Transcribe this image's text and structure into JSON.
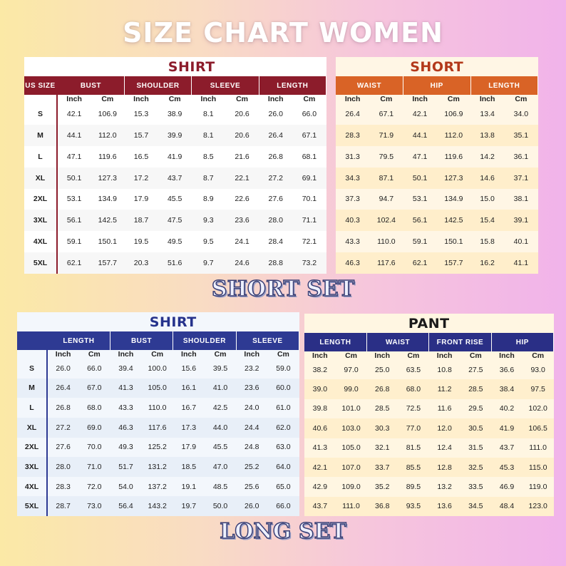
{
  "title": "SIZE CHART WOMEN",
  "labels": {
    "short_set": "SHORT SET",
    "long_set": "LONG SET"
  },
  "colors": {
    "short_shirt_accent": "#8c1c2b",
    "short_accent": "#d96326",
    "long_shirt_accent": "#2e3a93",
    "pant_accent": "#2a2f86"
  },
  "tables": {
    "short_shirt": {
      "title": "SHIRT",
      "size_header": "US SIZE",
      "groups": [
        "BUST",
        "SHOULDER",
        "SLEEVE",
        "LENGTH"
      ],
      "units": [
        "Inch",
        "Cm",
        "Inch",
        "Cm",
        "Inch",
        "Cm",
        "Inch",
        "Cm"
      ],
      "rows": [
        {
          "size": "S",
          "values": [
            "42.1",
            "106.9",
            "15.3",
            "38.9",
            "8.1",
            "20.6",
            "26.0",
            "66.0"
          ]
        },
        {
          "size": "M",
          "values": [
            "44.1",
            "112.0",
            "15.7",
            "39.9",
            "8.1",
            "20.6",
            "26.4",
            "67.1"
          ]
        },
        {
          "size": "L",
          "values": [
            "47.1",
            "119.6",
            "16.5",
            "41.9",
            "8.5",
            "21.6",
            "26.8",
            "68.1"
          ]
        },
        {
          "size": "XL",
          "values": [
            "50.1",
            "127.3",
            "17.2",
            "43.7",
            "8.7",
            "22.1",
            "27.2",
            "69.1"
          ]
        },
        {
          "size": "2XL",
          "values": [
            "53.1",
            "134.9",
            "17.9",
            "45.5",
            "8.9",
            "22.6",
            "27.6",
            "70.1"
          ]
        },
        {
          "size": "3XL",
          "values": [
            "56.1",
            "142.5",
            "18.7",
            "47.5",
            "9.3",
            "23.6",
            "28.0",
            "71.1"
          ]
        },
        {
          "size": "4XL",
          "values": [
            "59.1",
            "150.1",
            "19.5",
            "49.5",
            "9.5",
            "24.1",
            "28.4",
            "72.1"
          ]
        },
        {
          "size": "5XL",
          "values": [
            "62.1",
            "157.7",
            "20.3",
            "51.6",
            "9.7",
            "24.6",
            "28.8",
            "73.2"
          ]
        }
      ]
    },
    "short": {
      "title": "SHORT",
      "groups": [
        "WAIST",
        "HIP",
        "LENGTH"
      ],
      "units": [
        "Inch",
        "Cm",
        "Inch",
        "Cm",
        "Inch",
        "Cm"
      ],
      "rows": [
        {
          "values": [
            "26.4",
            "67.1",
            "42.1",
            "106.9",
            "13.4",
            "34.0"
          ]
        },
        {
          "values": [
            "28.3",
            "71.9",
            "44.1",
            "112.0",
            "13.8",
            "35.1"
          ]
        },
        {
          "values": [
            "31.3",
            "79.5",
            "47.1",
            "119.6",
            "14.2",
            "36.1"
          ]
        },
        {
          "values": [
            "34.3",
            "87.1",
            "50.1",
            "127.3",
            "14.6",
            "37.1"
          ]
        },
        {
          "values": [
            "37.3",
            "94.7",
            "53.1",
            "134.9",
            "15.0",
            "38.1"
          ]
        },
        {
          "values": [
            "40.3",
            "102.4",
            "56.1",
            "142.5",
            "15.4",
            "39.1"
          ]
        },
        {
          "values": [
            "43.3",
            "110.0",
            "59.1",
            "150.1",
            "15.8",
            "40.1"
          ]
        },
        {
          "values": [
            "46.3",
            "117.6",
            "62.1",
            "157.7",
            "16.2",
            "41.1"
          ]
        }
      ]
    },
    "long_shirt": {
      "title": "SHIRT",
      "size_header": "",
      "groups": [
        "LENGTH",
        "BUST",
        "SHOULDER",
        "SLEEVE"
      ],
      "units": [
        "Inch",
        "Cm",
        "Inch",
        "Cm",
        "Inch",
        "Cm",
        "Inch",
        "Cm"
      ],
      "rows": [
        {
          "size": "S",
          "values": [
            "26.0",
            "66.0",
            "39.4",
            "100.0",
            "15.6",
            "39.5",
            "23.2",
            "59.0"
          ]
        },
        {
          "size": "M",
          "values": [
            "26.4",
            "67.0",
            "41.3",
            "105.0",
            "16.1",
            "41.0",
            "23.6",
            "60.0"
          ]
        },
        {
          "size": "L",
          "values": [
            "26.8",
            "68.0",
            "43.3",
            "110.0",
            "16.7",
            "42.5",
            "24.0",
            "61.0"
          ]
        },
        {
          "size": "XL",
          "values": [
            "27.2",
            "69.0",
            "46.3",
            "117.6",
            "17.3",
            "44.0",
            "24.4",
            "62.0"
          ]
        },
        {
          "size": "2XL",
          "values": [
            "27.6",
            "70.0",
            "49.3",
            "125.2",
            "17.9",
            "45.5",
            "24.8",
            "63.0"
          ]
        },
        {
          "size": "3XL",
          "values": [
            "28.0",
            "71.0",
            "51.7",
            "131.2",
            "18.5",
            "47.0",
            "25.2",
            "64.0"
          ]
        },
        {
          "size": "4XL",
          "values": [
            "28.3",
            "72.0",
            "54.0",
            "137.2",
            "19.1",
            "48.5",
            "25.6",
            "65.0"
          ]
        },
        {
          "size": "5XL",
          "values": [
            "28.7",
            "73.0",
            "56.4",
            "143.2",
            "19.7",
            "50.0",
            "26.0",
            "66.0"
          ]
        }
      ]
    },
    "pant": {
      "title": "PANT",
      "groups": [
        "LENGTH",
        "WAIST",
        "FRONT RISE",
        "HIP"
      ],
      "units": [
        "Inch",
        "Cm",
        "Inch",
        "Cm",
        "Inch",
        "Cm",
        "Inch",
        "Cm"
      ],
      "rows": [
        {
          "values": [
            "38.2",
            "97.0",
            "25.0",
            "63.5",
            "10.8",
            "27.5",
            "36.6",
            "93.0"
          ]
        },
        {
          "values": [
            "39.0",
            "99.0",
            "26.8",
            "68.0",
            "11.2",
            "28.5",
            "38.4",
            "97.5"
          ]
        },
        {
          "values": [
            "39.8",
            "101.0",
            "28.5",
            "72.5",
            "11.6",
            "29.5",
            "40.2",
            "102.0"
          ]
        },
        {
          "values": [
            "40.6",
            "103.0",
            "30.3",
            "77.0",
            "12.0",
            "30.5",
            "41.9",
            "106.5"
          ]
        },
        {
          "values": [
            "41.3",
            "105.0",
            "32.1",
            "81.5",
            "12.4",
            "31.5",
            "43.7",
            "111.0"
          ]
        },
        {
          "values": [
            "42.1",
            "107.0",
            "33.7",
            "85.5",
            "12.8",
            "32.5",
            "45.3",
            "115.0"
          ]
        },
        {
          "values": [
            "42.9",
            "109.0",
            "35.2",
            "89.5",
            "13.2",
            "33.5",
            "46.9",
            "119.0"
          ]
        },
        {
          "values": [
            "43.7",
            "111.0",
            "36.8",
            "93.5",
            "13.6",
            "34.5",
            "48.4",
            "123.0"
          ]
        }
      ]
    }
  }
}
